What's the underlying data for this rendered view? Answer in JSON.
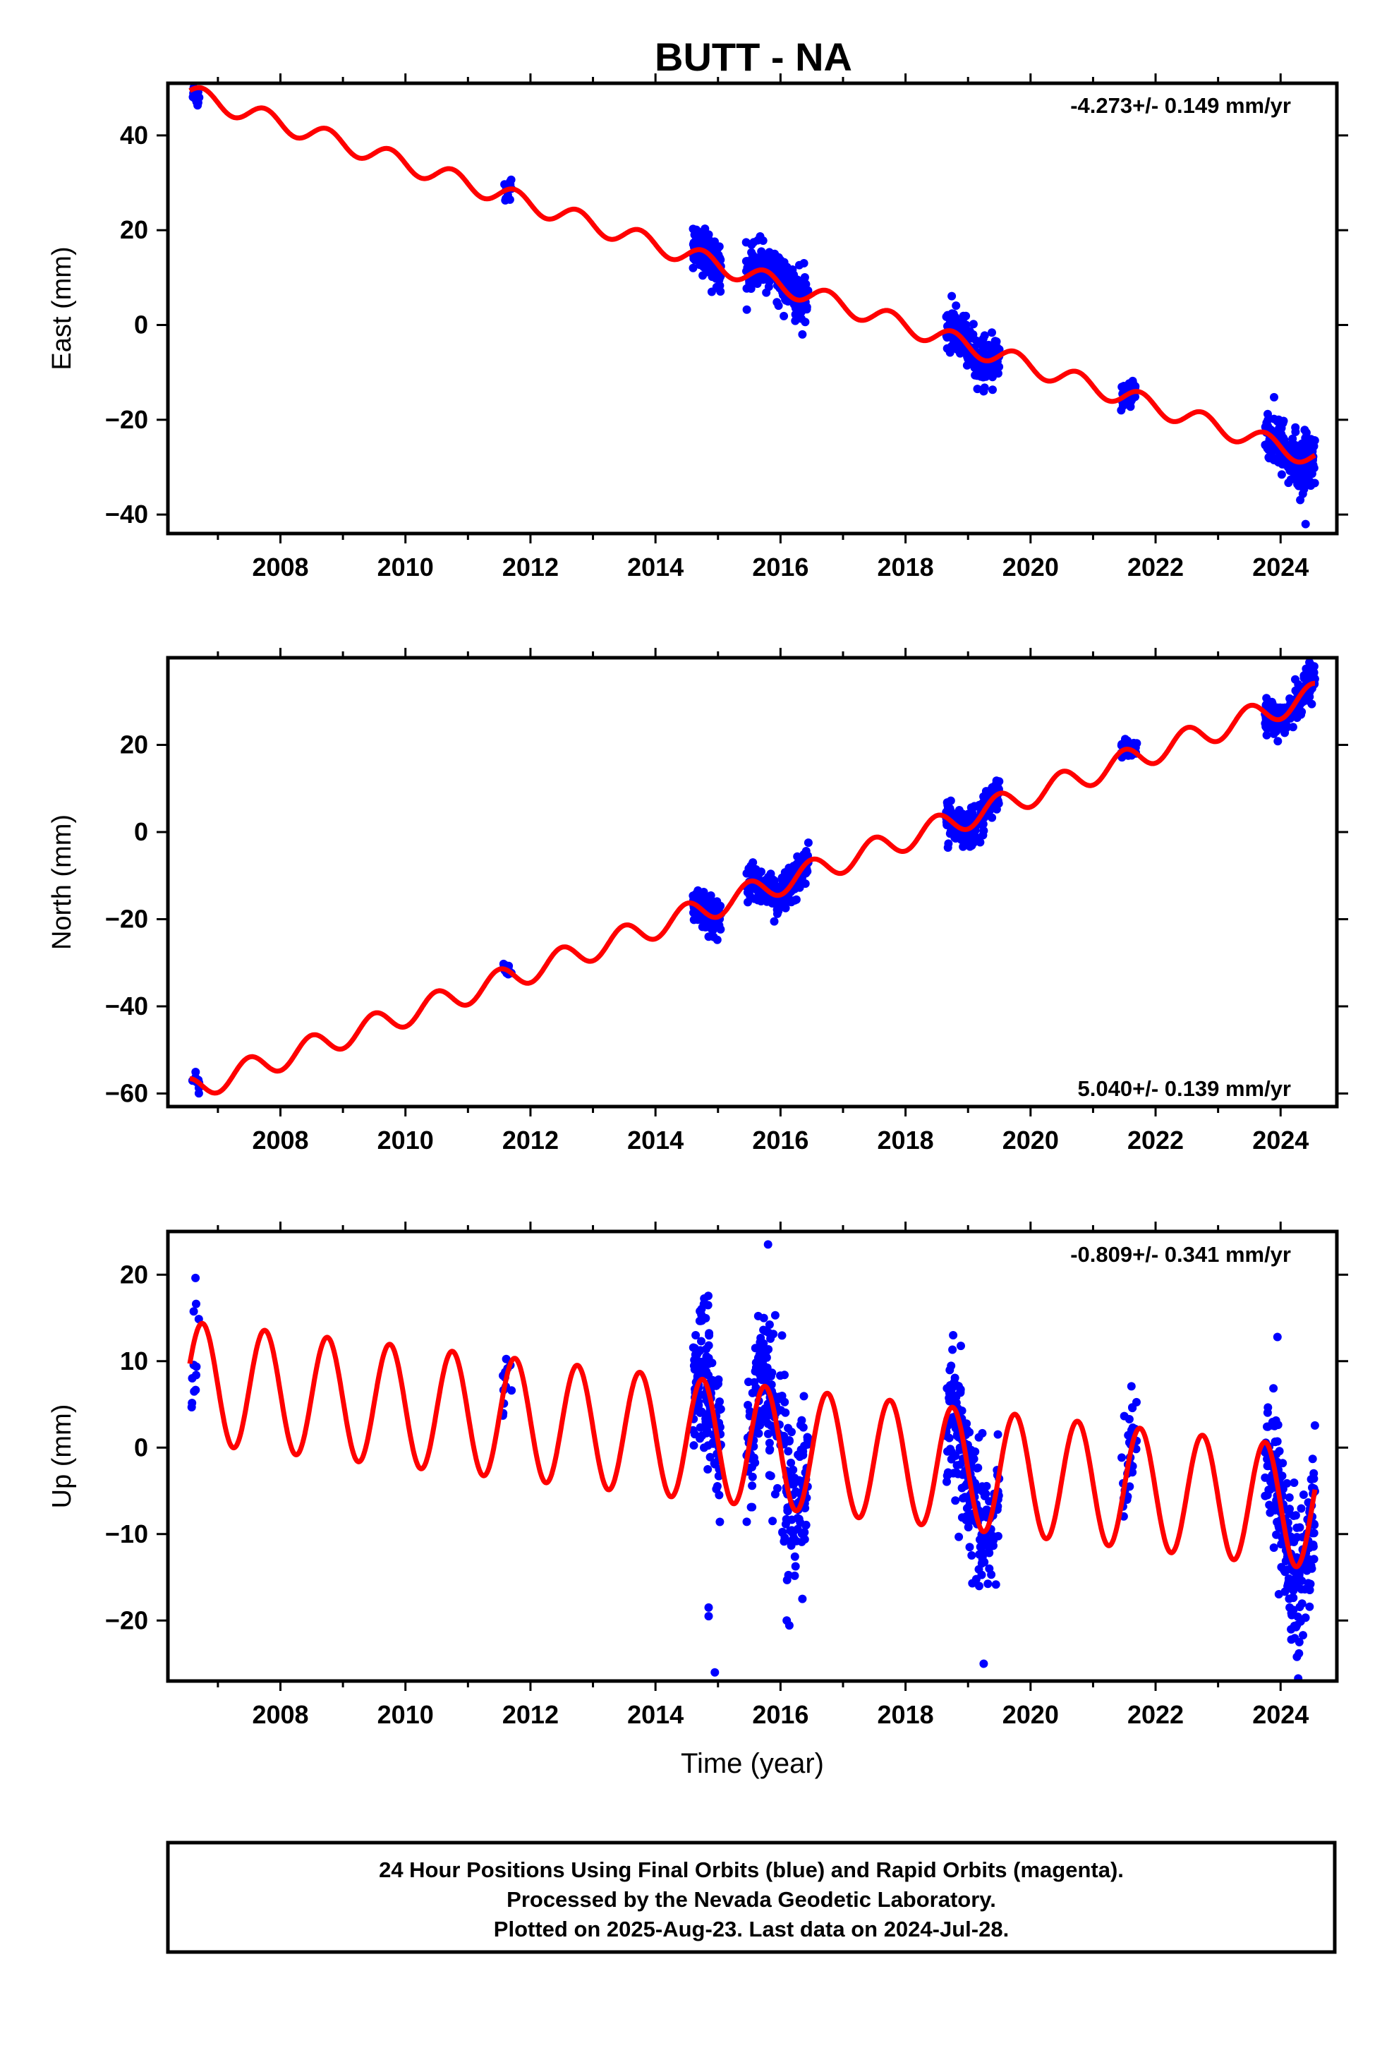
{
  "chart_data": [
    {
      "type": "scatter",
      "title": "BUTT - NA",
      "ylabel": "East (mm)",
      "xlabel": "",
      "rate_label": "-4.273+/- 0.149 mm/yr",
      "xlim": [
        2006.2,
        2024.9
      ],
      "ylim": [
        -44,
        51
      ],
      "xticks": [
        2008,
        2010,
        2012,
        2014,
        2016,
        2018,
        2020,
        2022,
        2024
      ],
      "xtick_labels": [
        "2008",
        "2010",
        "2012",
        "2014",
        "2016",
        "2018",
        "2020",
        "2022",
        "2024"
      ],
      "yticks": [
        40,
        20,
        0,
        -20,
        -40
      ],
      "ytick_labels": [
        "40",
        "20",
        "0",
        "−20",
        "−40"
      ],
      "grid": false,
      "colors": {
        "data": "#0000ff",
        "model": "#ff0000"
      },
      "model": {
        "t0": 2006.6,
        "y0": 48.6,
        "rate": -4.273,
        "amp": 2.0,
        "phase_peak": 0.75
      },
      "data_segments": [
        {
          "start": 2006.58,
          "end": 2006.7,
          "n": 10,
          "scatter": 1.4,
          "offset": -1.5
        },
        {
          "start": 2011.55,
          "end": 2011.7,
          "n": 10,
          "scatter": 1.5,
          "offset": 0
        },
        {
          "start": 2014.6,
          "end": 2015.05,
          "n": 160,
          "scatter": 2.2,
          "offset": 0
        },
        {
          "start": 2015.45,
          "end": 2016.45,
          "n": 240,
          "scatter": 2.3,
          "offset": 1.0
        },
        {
          "start": 2018.65,
          "end": 2019.5,
          "n": 220,
          "scatter": 2.4,
          "offset": 0
        },
        {
          "start": 2021.45,
          "end": 2021.7,
          "n": 40,
          "scatter": 1.4,
          "offset": 0
        },
        {
          "start": 2023.75,
          "end": 2024.55,
          "n": 230,
          "scatter": 2.8,
          "offset": 0
        }
      ],
      "outliers": [
        [
          2024.4,
          -42.0
        ],
        [
          2016.35,
          -2.0
        ],
        [
          2019.25,
          -14.0
        ],
        [
          2014.9,
          7.0
        ]
      ]
    },
    {
      "type": "scatter",
      "title": "",
      "ylabel": "North (mm)",
      "xlabel": "",
      "rate_label": "5.040+/- 0.139 mm/yr",
      "xlim": [
        2006.2,
        2024.9
      ],
      "ylim": [
        -63,
        40
      ],
      "xticks": [
        2008,
        2010,
        2012,
        2014,
        2016,
        2018,
        2020,
        2022,
        2024
      ],
      "xtick_labels": [
        "2008",
        "2010",
        "2012",
        "2014",
        "2016",
        "2018",
        "2020",
        "2022",
        "2024"
      ],
      "yticks": [
        20,
        0,
        -20,
        -40,
        -60
      ],
      "ytick_labels": [
        "20",
        "0",
        "−20",
        "−40",
        "−60"
      ],
      "grid": false,
      "colors": {
        "data": "#0000ff",
        "model": "#ff0000"
      },
      "model": {
        "t0": 2006.6,
        "y0": -59.0,
        "rate": 5.04,
        "amp": 2.8,
        "phase_peak": 0.5
      },
      "data_segments": [
        {
          "start": 2006.58,
          "end": 2006.7,
          "n": 10,
          "scatter": 1.2,
          "offset": 0
        },
        {
          "start": 2011.55,
          "end": 2011.7,
          "n": 10,
          "scatter": 1.2,
          "offset": 0
        },
        {
          "start": 2014.6,
          "end": 2015.05,
          "n": 160,
          "scatter": 2.0,
          "offset": 0
        },
        {
          "start": 2015.45,
          "end": 2016.45,
          "n": 240,
          "scatter": 2.0,
          "offset": 0
        },
        {
          "start": 2018.65,
          "end": 2019.5,
          "n": 220,
          "scatter": 2.0,
          "offset": 0
        },
        {
          "start": 2021.45,
          "end": 2021.7,
          "n": 40,
          "scatter": 1.2,
          "offset": 0
        },
        {
          "start": 2023.75,
          "end": 2024.55,
          "n": 230,
          "scatter": 2.0,
          "offset": 0
        }
      ],
      "outliers": [
        [
          2014.85,
          -24.0
        ],
        [
          2015.9,
          -20.5
        ],
        [
          2024.45,
          37.5
        ]
      ]
    },
    {
      "type": "scatter",
      "title": "",
      "ylabel": "Up (mm)",
      "xlabel": "Time (year)",
      "rate_label": "-0.809+/- 0.341 mm/yr",
      "xlim": [
        2006.2,
        2024.9
      ],
      "ylim": [
        -27,
        25
      ],
      "xticks": [
        2008,
        2010,
        2012,
        2014,
        2016,
        2018,
        2020,
        2022,
        2024
      ],
      "xtick_labels": [
        "2008",
        "2010",
        "2012",
        "2014",
        "2016",
        "2018",
        "2020",
        "2022",
        "2024"
      ],
      "yticks": [
        20,
        10,
        0,
        -10,
        -20
      ],
      "ytick_labels": [
        "20",
        "10",
        "0",
        "−10",
        "−20"
      ],
      "grid": false,
      "colors": {
        "data": "#0000ff",
        "model": "#ff0000"
      },
      "model": {
        "t0": 2006.6,
        "y0": 7.5,
        "rate": -0.809,
        "amp": 7.0,
        "phase_peak": 0.75
      },
      "data_segments": [
        {
          "start": 2006.58,
          "end": 2006.7,
          "n": 12,
          "scatter": 3.5,
          "offset": -2.0
        },
        {
          "start": 2011.55,
          "end": 2011.7,
          "n": 12,
          "scatter": 3.0,
          "offset": 0
        },
        {
          "start": 2014.6,
          "end": 2015.05,
          "n": 160,
          "scatter": 4.5,
          "offset": 0
        },
        {
          "start": 2015.45,
          "end": 2016.45,
          "n": 240,
          "scatter": 4.5,
          "offset": 0
        },
        {
          "start": 2018.65,
          "end": 2019.5,
          "n": 220,
          "scatter": 4.0,
          "offset": 0
        },
        {
          "start": 2021.45,
          "end": 2021.7,
          "n": 40,
          "scatter": 3.0,
          "offset": 0
        },
        {
          "start": 2023.75,
          "end": 2024.55,
          "n": 230,
          "scatter": 4.0,
          "offset": -1.0
        }
      ],
      "outliers": [
        [
          2014.95,
          -26.0
        ],
        [
          2014.85,
          -19.5
        ],
        [
          2014.85,
          -18.5
        ],
        [
          2015.8,
          23.5
        ],
        [
          2016.1,
          -20.0
        ],
        [
          2019.25,
          -25.0
        ],
        [
          2016.35,
          -17.5
        ],
        [
          2023.95,
          12.8
        ],
        [
          2024.3,
          -22.5
        ]
      ]
    }
  ],
  "footer": {
    "line1": "24 Hour Positions Using Final Orbits (blue) and Rapid Orbits (magenta).",
    "line2": "Processed by the Nevada Geodetic Laboratory.",
    "line3": "Plotted on 2025-Aug-23. Last data on 2024-Jul-28."
  }
}
